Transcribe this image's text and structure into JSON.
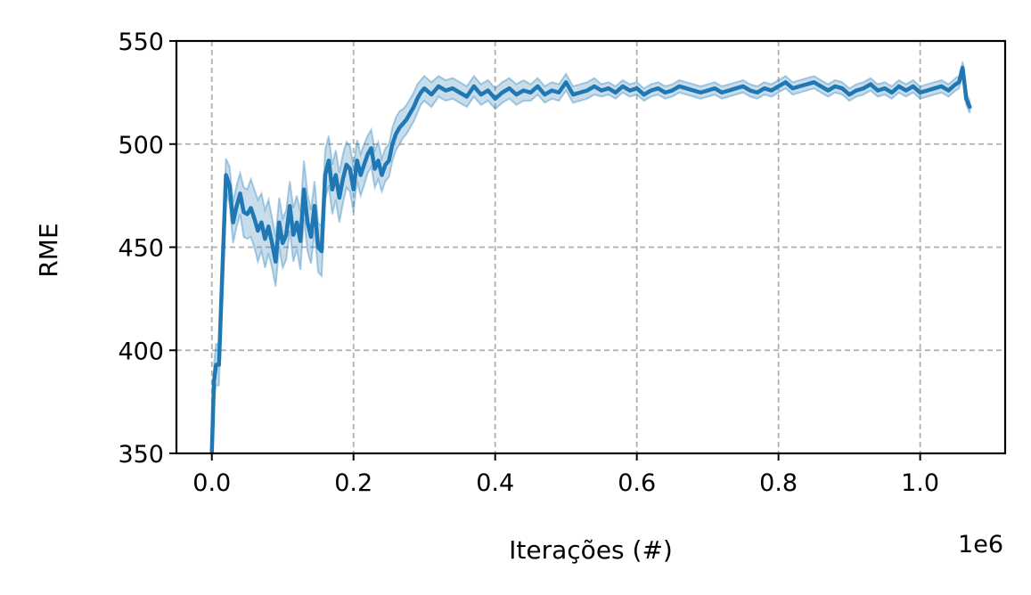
{
  "chart_data": {
    "type": "line",
    "xlabel": "Iterações (#)",
    "ylabel": "RME",
    "x_offset_label": "1e6",
    "xlim": [
      -50000,
      1120000
    ],
    "ylim": [
      350,
      550
    ],
    "x_ticks": [
      0,
      200000,
      400000,
      600000,
      800000,
      1000000
    ],
    "x_tick_labels": [
      "0.0",
      "0.2",
      "0.4",
      "0.6",
      "0.8",
      "1.0"
    ],
    "y_ticks": [
      350,
      400,
      450,
      500,
      550
    ],
    "y_tick_labels": [
      "350",
      "400",
      "450",
      "500",
      "550"
    ],
    "grid": true,
    "line_color": "#1f77b4",
    "band_color": "#1f77b4",
    "series": [
      {
        "x": [
          0,
          3000,
          6000,
          10000,
          15000,
          20000,
          25000,
          30000,
          35000,
          40000,
          45000,
          50000,
          55000,
          60000,
          65000,
          70000,
          75000,
          80000,
          85000,
          90000,
          95000,
          100000,
          105000,
          110000,
          115000,
          120000,
          125000,
          130000,
          135000,
          140000,
          145000,
          150000,
          155000,
          160000,
          165000,
          170000,
          175000,
          180000,
          185000,
          190000,
          195000,
          200000,
          205000,
          210000,
          215000,
          220000,
          225000,
          230000,
          235000,
          240000,
          245000,
          250000,
          255000,
          260000,
          265000,
          270000,
          275000,
          280000,
          285000,
          290000,
          295000,
          300000,
          310000,
          320000,
          330000,
          340000,
          350000,
          360000,
          370000,
          380000,
          390000,
          400000,
          410000,
          420000,
          430000,
          440000,
          450000,
          460000,
          470000,
          480000,
          490000,
          500000,
          510000,
          520000,
          530000,
          540000,
          550000,
          560000,
          570000,
          580000,
          590000,
          600000,
          610000,
          620000,
          630000,
          640000,
          650000,
          660000,
          670000,
          680000,
          690000,
          700000,
          710000,
          720000,
          730000,
          740000,
          750000,
          760000,
          770000,
          780000,
          790000,
          800000,
          810000,
          820000,
          830000,
          840000,
          850000,
          860000,
          870000,
          880000,
          890000,
          900000,
          910000,
          920000,
          930000,
          940000,
          950000,
          960000,
          970000,
          980000,
          990000,
          1000000,
          1010000,
          1020000,
          1030000,
          1040000,
          1050000,
          1055000,
          1060000,
          1065000,
          1070000
        ],
        "y": [
          350,
          385,
          393,
          393,
          440,
          485,
          480,
          462,
          470,
          476,
          467,
          466,
          469,
          464,
          458,
          462,
          454,
          460,
          452,
          443,
          462,
          452,
          456,
          470,
          456,
          462,
          453,
          478,
          462,
          455,
          470,
          450,
          448,
          485,
          492,
          478,
          485,
          474,
          483,
          490,
          488,
          478,
          492,
          485,
          490,
          495,
          498,
          488,
          492,
          485,
          490,
          492,
          500,
          505,
          508,
          510,
          512,
          515,
          518,
          522,
          525,
          527,
          524,
          528,
          526,
          527,
          525,
          523,
          528,
          524,
          526,
          522,
          525,
          527,
          524,
          526,
          525,
          528,
          524,
          526,
          525,
          530,
          524,
          525,
          526,
          528,
          526,
          527,
          525,
          528,
          526,
          527,
          524,
          526,
          527,
          525,
          526,
          528,
          527,
          526,
          525,
          526,
          527,
          525,
          526,
          527,
          528,
          526,
          525,
          527,
          526,
          528,
          530,
          527,
          528,
          529,
          530,
          528,
          526,
          528,
          527,
          524,
          526,
          527,
          529,
          526,
          527,
          525,
          528,
          526,
          528,
          525,
          526,
          527,
          528,
          526,
          529,
          530,
          537,
          522,
          518
        ],
        "band_half_width": [
          0,
          8,
          10,
          10,
          10,
          8,
          9,
          10,
          10,
          10,
          12,
          12,
          14,
          14,
          15,
          14,
          14,
          13,
          12,
          12,
          12,
          12,
          12,
          12,
          13,
          13,
          14,
          14,
          14,
          13,
          12,
          12,
          12,
          12,
          12,
          12,
          12,
          12,
          12,
          11,
          11,
          11,
          10,
          10,
          10,
          9,
          9,
          9,
          9,
          8,
          8,
          8,
          8,
          8,
          8,
          7,
          7,
          7,
          7,
          7,
          6,
          6,
          6,
          5,
          5,
          5,
          5,
          5,
          5,
          5,
          5,
          5,
          5,
          5,
          5,
          5,
          4,
          4,
          4,
          4,
          4,
          4,
          4,
          4,
          4,
          4,
          3,
          3,
          3,
          3,
          3,
          3,
          3,
          3,
          3,
          3,
          3,
          3,
          3,
          3,
          3,
          3,
          3,
          3,
          3,
          3,
          3,
          3,
          3,
          3,
          3,
          3,
          3,
          3,
          3,
          3,
          3,
          3,
          3,
          3,
          3,
          3,
          3,
          3,
          3,
          3,
          3,
          3,
          3,
          3,
          3,
          3,
          3,
          3,
          3,
          3,
          3,
          3,
          3,
          3,
          3
        ]
      }
    ]
  }
}
